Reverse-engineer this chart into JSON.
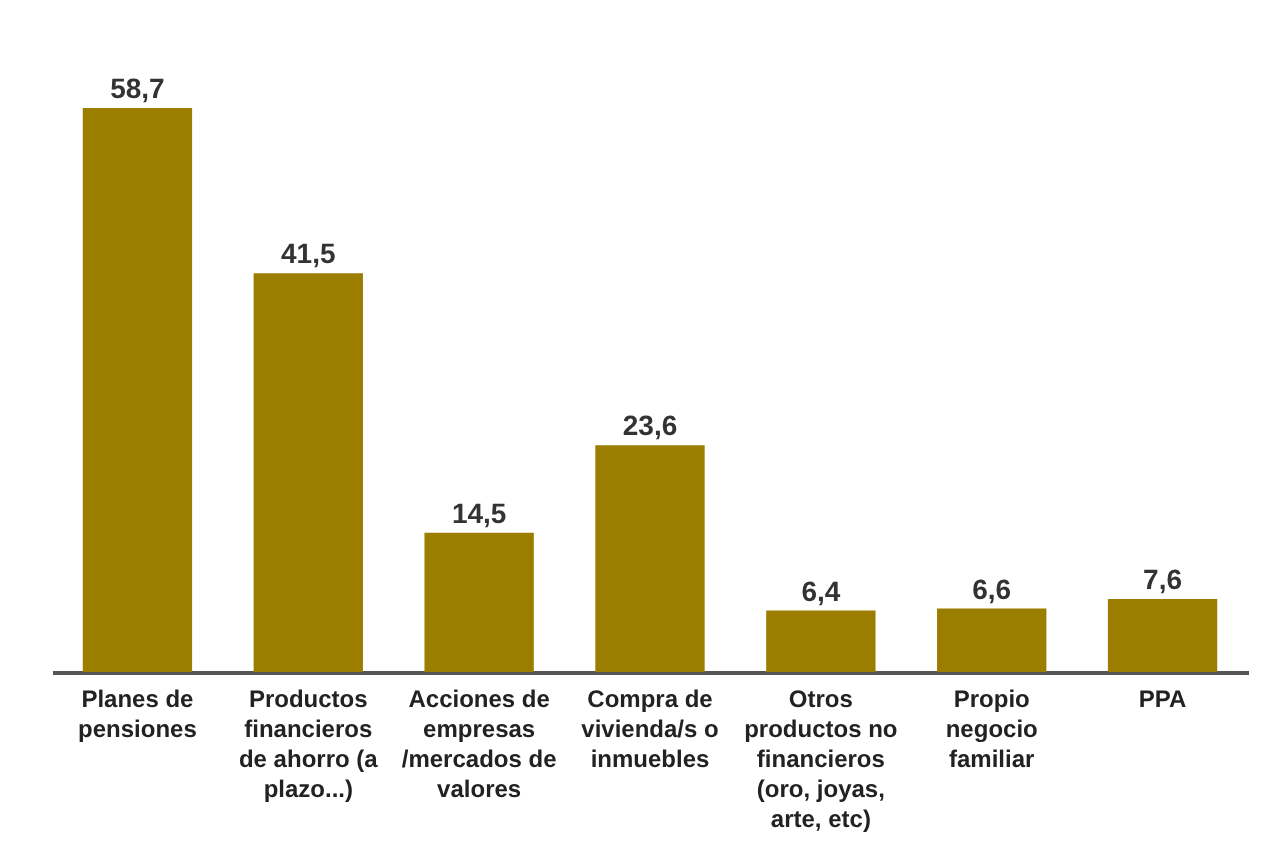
{
  "chart_data": {
    "type": "bar",
    "categories": [
      "Planes de pensiones",
      "Productos financieros de ahorro (a plazo...)",
      "Acciones de empresas /mercados de valores",
      "Compra de vivienda/s o inmuebles",
      "Otros productos no financieros (oro, joyas, arte, etc)",
      "Propio negocio familiar",
      "PPA"
    ],
    "values": [
      58.7,
      41.5,
      14.5,
      23.6,
      6.4,
      6.6,
      7.6
    ],
    "color": "#9b7d00",
    "value_labels": [
      "58,7",
      "41,5",
      "14,5",
      "23,6",
      "6,4",
      "6,6",
      "7,6"
    ]
  }
}
